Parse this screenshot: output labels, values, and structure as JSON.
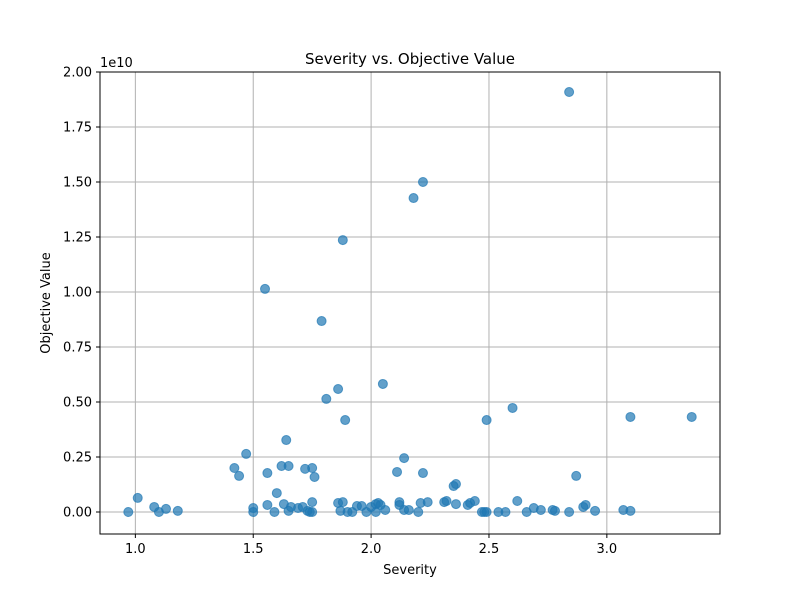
{
  "chart_data": {
    "type": "scatter",
    "title": "Severity vs. Objective Value",
    "xlabel": "Severity",
    "ylabel": "Objective Value",
    "y_offset_label": "1e10",
    "xlim": [
      0.85,
      3.48
    ],
    "ylim": [
      -0.1,
      2.0
    ],
    "y_unit_multiplier": 10000000000,
    "grid": true,
    "marker_color": "#1f77b4",
    "marker_alpha": 0.7,
    "x_ticks": [
      {
        "value": 1.0,
        "label": "1.0"
      },
      {
        "value": 1.5,
        "label": "1.5"
      },
      {
        "value": 2.0,
        "label": "2.0"
      },
      {
        "value": 2.5,
        "label": "2.5"
      },
      {
        "value": 3.0,
        "label": "3.0"
      }
    ],
    "y_ticks": [
      {
        "value": 0.0,
        "label": "0.00"
      },
      {
        "value": 0.25,
        "label": "0.25"
      },
      {
        "value": 0.5,
        "label": "0.50"
      },
      {
        "value": 0.75,
        "label": "0.75"
      },
      {
        "value": 1.0,
        "label": "1.00"
      },
      {
        "value": 1.25,
        "label": "1.25"
      },
      {
        "value": 1.5,
        "label": "1.50"
      },
      {
        "value": 1.75,
        "label": "1.75"
      },
      {
        "value": 2.0,
        "label": "2.00"
      }
    ],
    "points": [
      {
        "x": 0.97,
        "y": 0.0
      },
      {
        "x": 1.01,
        "y": 0.064
      },
      {
        "x": 1.08,
        "y": 0.023
      },
      {
        "x": 1.1,
        "y": 0.0
      },
      {
        "x": 1.13,
        "y": 0.014
      },
      {
        "x": 1.18,
        "y": 0.005
      },
      {
        "x": 1.42,
        "y": 0.2
      },
      {
        "x": 1.44,
        "y": 0.164
      },
      {
        "x": 1.47,
        "y": 0.264
      },
      {
        "x": 1.5,
        "y": 0.018
      },
      {
        "x": 1.5,
        "y": 0.0
      },
      {
        "x": 1.55,
        "y": 1.014
      },
      {
        "x": 1.56,
        "y": 0.177
      },
      {
        "x": 1.56,
        "y": 0.032
      },
      {
        "x": 1.59,
        "y": 0.0
      },
      {
        "x": 1.6,
        "y": 0.086
      },
      {
        "x": 1.62,
        "y": 0.209
      },
      {
        "x": 1.63,
        "y": 0.036
      },
      {
        "x": 1.64,
        "y": 0.327
      },
      {
        "x": 1.65,
        "y": 0.209
      },
      {
        "x": 1.65,
        "y": 0.005
      },
      {
        "x": 1.66,
        "y": 0.023
      },
      {
        "x": 1.69,
        "y": 0.018
      },
      {
        "x": 1.71,
        "y": 0.023
      },
      {
        "x": 1.72,
        "y": 0.196
      },
      {
        "x": 1.73,
        "y": 0.005
      },
      {
        "x": 1.74,
        "y": 0.0
      },
      {
        "x": 1.75,
        "y": 0.2
      },
      {
        "x": 1.75,
        "y": 0.0
      },
      {
        "x": 1.75,
        "y": 0.045
      },
      {
        "x": 1.76,
        "y": 0.159
      },
      {
        "x": 1.79,
        "y": 0.868
      },
      {
        "x": 1.81,
        "y": 0.514
      },
      {
        "x": 1.86,
        "y": 0.559
      },
      {
        "x": 1.86,
        "y": 0.041
      },
      {
        "x": 1.87,
        "y": 0.005
      },
      {
        "x": 1.88,
        "y": 0.045
      },
      {
        "x": 1.88,
        "y": 1.236
      },
      {
        "x": 1.89,
        "y": 0.418
      },
      {
        "x": 1.9,
        "y": 0.0
      },
      {
        "x": 1.92,
        "y": 0.0
      },
      {
        "x": 1.94,
        "y": 0.027
      },
      {
        "x": 1.96,
        "y": 0.027
      },
      {
        "x": 1.98,
        "y": 0.0
      },
      {
        "x": 2.0,
        "y": 0.023
      },
      {
        "x": 2.02,
        "y": 0.0
      },
      {
        "x": 2.02,
        "y": 0.036
      },
      {
        "x": 2.03,
        "y": 0.041
      },
      {
        "x": 2.04,
        "y": 0.032
      },
      {
        "x": 2.05,
        "y": 0.582
      },
      {
        "x": 2.06,
        "y": 0.009
      },
      {
        "x": 2.11,
        "y": 0.182
      },
      {
        "x": 2.12,
        "y": 0.045
      },
      {
        "x": 2.12,
        "y": 0.032
      },
      {
        "x": 2.14,
        "y": 0.245
      },
      {
        "x": 2.14,
        "y": 0.009
      },
      {
        "x": 2.16,
        "y": 0.009
      },
      {
        "x": 2.18,
        "y": 1.427
      },
      {
        "x": 2.2,
        "y": 0.0
      },
      {
        "x": 2.21,
        "y": 0.041
      },
      {
        "x": 2.22,
        "y": 0.177
      },
      {
        "x": 2.22,
        "y": 1.5
      },
      {
        "x": 2.24,
        "y": 0.045
      },
      {
        "x": 2.31,
        "y": 0.045
      },
      {
        "x": 2.32,
        "y": 0.05
      },
      {
        "x": 2.35,
        "y": 0.118
      },
      {
        "x": 2.36,
        "y": 0.036
      },
      {
        "x": 2.36,
        "y": 0.127
      },
      {
        "x": 2.41,
        "y": 0.032
      },
      {
        "x": 2.42,
        "y": 0.041
      },
      {
        "x": 2.44,
        "y": 0.05
      },
      {
        "x": 2.47,
        "y": 0.0
      },
      {
        "x": 2.48,
        "y": 0.0
      },
      {
        "x": 2.49,
        "y": 0.418
      },
      {
        "x": 2.49,
        "y": 0.0
      },
      {
        "x": 2.54,
        "y": 0.0
      },
      {
        "x": 2.57,
        "y": 0.0
      },
      {
        "x": 2.6,
        "y": 0.473
      },
      {
        "x": 2.62,
        "y": 0.05
      },
      {
        "x": 2.66,
        "y": 0.0
      },
      {
        "x": 2.69,
        "y": 0.018
      },
      {
        "x": 2.72,
        "y": 0.009
      },
      {
        "x": 2.77,
        "y": 0.009
      },
      {
        "x": 2.78,
        "y": 0.005
      },
      {
        "x": 2.84,
        "y": 1.909
      },
      {
        "x": 2.84,
        "y": 0.0
      },
      {
        "x": 2.87,
        "y": 0.164
      },
      {
        "x": 2.9,
        "y": 0.023
      },
      {
        "x": 2.91,
        "y": 0.032
      },
      {
        "x": 2.95,
        "y": 0.005
      },
      {
        "x": 3.07,
        "y": 0.009
      },
      {
        "x": 3.1,
        "y": 0.005
      },
      {
        "x": 3.1,
        "y": 0.432
      },
      {
        "x": 3.36,
        "y": 0.432
      }
    ]
  }
}
